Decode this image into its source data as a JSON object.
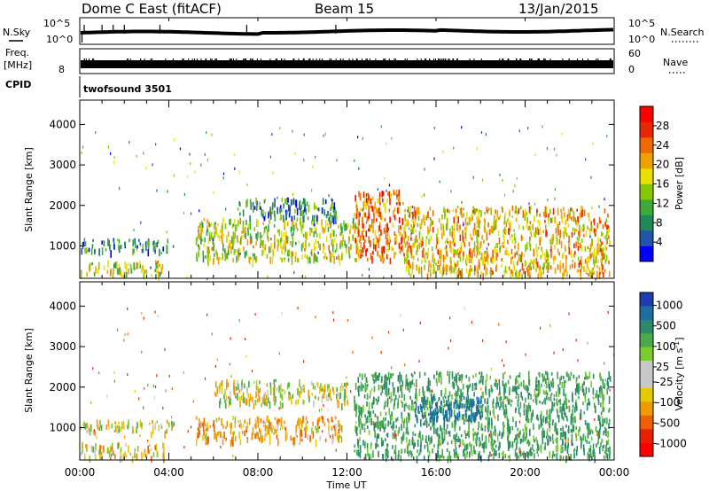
{
  "header": {
    "station": "Dome C East (fitACF)",
    "beam": "Beam 15",
    "date": "13/Jan/2015"
  },
  "left_labels": {
    "nsky": "N.Sky",
    "freq": "Freq.",
    "freq_unit": "[MHz]",
    "cpid": "CPID"
  },
  "right_labels": {
    "nsearch": "N.Search",
    "nave": "Nave"
  },
  "cpid_name": "twofsound 3501",
  "time_axis": {
    "label": "Time UT",
    "ticks": [
      "00:00",
      "04:00",
      "08:00",
      "12:00",
      "16:00",
      "20:00",
      "00:00"
    ],
    "hours": [
      0,
      4,
      8,
      12,
      16,
      20,
      24
    ]
  },
  "strip_ticks": {
    "nsky": [
      "10^5",
      "10^0"
    ],
    "nsearch": [
      "10^5",
      "10^0"
    ],
    "freq": [
      "8"
    ],
    "nave": [
      "60",
      "0"
    ]
  },
  "range_axis": {
    "label": "Slant Range [km]",
    "ticks": [
      1000,
      2000,
      3000,
      4000
    ],
    "range": [
      200,
      4600
    ]
  },
  "power_scale": {
    "label": "Power [dB]",
    "ticks": [
      "4",
      "8",
      "12",
      "16",
      "20",
      "24",
      "28"
    ],
    "range": [
      0,
      32
    ],
    "colors": [
      "#0000ff",
      "#2255aa",
      "#1e8a5a",
      "#3aaa3a",
      "#88c800",
      "#e8e000",
      "#f0a000",
      "#f06800",
      "#e82800",
      "#ff0000"
    ]
  },
  "velocity_scale": {
    "label": "Velocity [m s",
    "label_sup": "-1",
    "label_end": "]",
    "ticks": [
      "1000",
      "500",
      "100",
      "25",
      "-25",
      "-100",
      "-500",
      "-1000"
    ],
    "colors": [
      "#1e3cb4",
      "#1c6ea0",
      "#2a8a6a",
      "#4aaa4a",
      "#7acc30",
      "#c8c8c8",
      "#c8c8c8",
      "#e8c800",
      "#f09a00",
      "#f06000",
      "#e82000",
      "#ff0000"
    ]
  },
  "chart_data": [
    {
      "type": "heatmap",
      "title": "Power",
      "xlabel": "Time UT",
      "ylabel": "Slant Range [km]",
      "xlim_hours": [
        0,
        24
      ],
      "ylim_km": [
        200,
        4600
      ],
      "zlabel": "Power [dB]",
      "zlim": [
        0,
        32
      ],
      "echo_regions": [
        {
          "t0": 0.0,
          "t1": 4.2,
          "r0": 900,
          "r1": 1200,
          "z": 8
        },
        {
          "t0": 0.0,
          "t1": 3.8,
          "r0": 300,
          "r1": 650,
          "z": 16
        },
        {
          "t0": 5.2,
          "t1": 12.5,
          "r0": 700,
          "r1": 1700,
          "z": 16
        },
        {
          "t0": 7.0,
          "t1": 11.5,
          "r0": 1700,
          "r1": 2200,
          "z": 8
        },
        {
          "t0": 12.3,
          "t1": 14.5,
          "r0": 700,
          "r1": 2400,
          "z": 24
        },
        {
          "t0": 14.5,
          "t1": 23.8,
          "r0": 300,
          "r1": 2000,
          "z": 20
        }
      ]
    },
    {
      "type": "heatmap",
      "title": "Velocity",
      "xlabel": "Time UT",
      "ylabel": "Slant Range [km]",
      "xlim_hours": [
        0,
        24
      ],
      "ylim_km": [
        200,
        4600
      ],
      "zlabel": "Velocity [m s-1]",
      "zlim": [
        -1000,
        1000
      ],
      "echo_regions": [
        {
          "t0": 0.0,
          "t1": 4.2,
          "r0": 900,
          "r1": 1200,
          "z": -10
        },
        {
          "t0": 0.0,
          "t1": 3.8,
          "r0": 300,
          "r1": 650,
          "z": -80
        },
        {
          "t0": 5.2,
          "t1": 11.8,
          "r0": 700,
          "r1": 1300,
          "z": -150
        },
        {
          "t0": 6.0,
          "t1": 12.0,
          "r0": 1600,
          "r1": 2200,
          "z": 0
        },
        {
          "t0": 12.3,
          "t1": 23.8,
          "r0": 300,
          "r1": 2400,
          "z": 250
        },
        {
          "t0": 15.0,
          "t1": 18.0,
          "r0": 1200,
          "r1": 1800,
          "z": 800
        }
      ]
    }
  ]
}
